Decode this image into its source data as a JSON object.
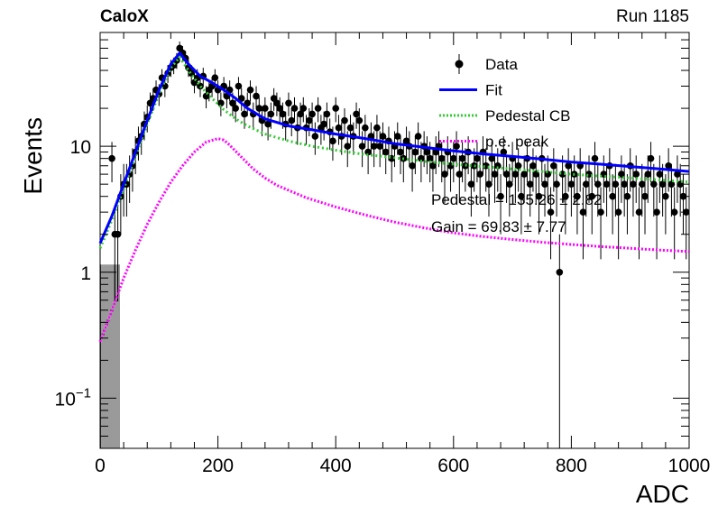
{
  "chart_data": {
    "type": "scatter",
    "top_left_label": "CaloX",
    "top_right_label": "Run 1185",
    "xlabel": "ADC",
    "ylabel": "Events",
    "xlim": [
      0,
      1000
    ],
    "ylim": [
      0.04,
      80
    ],
    "yscale": "log",
    "x_ticks": [
      0,
      200,
      400,
      600,
      800,
      1000
    ],
    "x_tick_labels": [
      "0",
      "200",
      "400",
      "600",
      "800",
      "1000"
    ],
    "y_ticks": [
      0.1,
      1,
      10
    ],
    "y_tick_labels": [
      {
        "base": "10",
        "exp": "−1"
      },
      {
        "base": "1",
        "exp": ""
      },
      {
        "base": "10",
        "exp": ""
      }
    ],
    "legend_position": "top-right",
    "legend": [
      {
        "label": "Data",
        "kind": "marker",
        "color": "#000000"
      },
      {
        "label": "Fit",
        "kind": "line",
        "color": "#0000ff"
      },
      {
        "label": "Pedestal CB",
        "kind": "dotted",
        "color": "#33cc33"
      },
      {
        "label": "p.e. peak",
        "kind": "dotted",
        "color": "#ff00ff"
      }
    ],
    "fit_results": [
      {
        "label": "Pedestal = 135.26 ± 2.82"
      },
      {
        "label": "Gain = 69.83 ± 7.77"
      }
    ],
    "series": [
      {
        "name": "Data",
        "color": "#000000",
        "x": [
          20,
          25,
          30,
          35,
          40,
          45,
          50,
          55,
          60,
          65,
          70,
          75,
          80,
          85,
          90,
          95,
          100,
          105,
          110,
          115,
          120,
          125,
          130,
          135,
          140,
          145,
          150,
          155,
          160,
          165,
          170,
          175,
          180,
          185,
          190,
          195,
          200,
          205,
          210,
          215,
          220,
          225,
          230,
          235,
          240,
          245,
          250,
          255,
          260,
          265,
          270,
          275,
          280,
          285,
          290,
          295,
          300,
          305,
          310,
          315,
          320,
          325,
          330,
          335,
          340,
          345,
          350,
          355,
          360,
          365,
          370,
          375,
          380,
          385,
          390,
          395,
          400,
          405,
          410,
          415,
          420,
          425,
          430,
          435,
          440,
          445,
          450,
          455,
          460,
          465,
          470,
          475,
          480,
          485,
          490,
          495,
          500,
          505,
          510,
          515,
          520,
          525,
          530,
          535,
          540,
          545,
          550,
          555,
          560,
          565,
          570,
          575,
          580,
          585,
          590,
          595,
          600,
          605,
          610,
          615,
          620,
          625,
          630,
          635,
          640,
          645,
          650,
          655,
          660,
          665,
          670,
          675,
          680,
          685,
          690,
          695,
          700,
          705,
          710,
          715,
          720,
          725,
          730,
          735,
          740,
          745,
          750,
          755,
          760,
          765,
          770,
          775,
          780,
          785,
          790,
          795,
          800,
          805,
          810,
          815,
          820,
          825,
          830,
          835,
          840,
          845,
          850,
          855,
          860,
          865,
          870,
          875,
          880,
          885,
          890,
          895,
          900,
          905,
          910,
          915,
          920,
          925,
          930,
          935,
          940,
          945,
          950,
          955,
          960,
          965,
          970,
          975,
          980,
          985,
          990,
          995
        ],
        "y": [
          8,
          2,
          2,
          4,
          5,
          5,
          6,
          7,
          9,
          11,
          12,
          15,
          17,
          22,
          24,
          28,
          26,
          35,
          30,
          38,
          42,
          44,
          48,
          60,
          55,
          50,
          42,
          38,
          32,
          35,
          30,
          36,
          25,
          28,
          30,
          35,
          28,
          22,
          30,
          25,
          28,
          22,
          20,
          30,
          24,
          18,
          22,
          28,
          18,
          25,
          20,
          16,
          20,
          15,
          18,
          24,
          22,
          20,
          18,
          15,
          22,
          16,
          20,
          14,
          18,
          20,
          14,
          16,
          18,
          12,
          20,
          14,
          15,
          18,
          13,
          11,
          20,
          14,
          12,
          16,
          10,
          14,
          12,
          18,
          16,
          10,
          14,
          9,
          12,
          10,
          14,
          10,
          12,
          9,
          11,
          8,
          10,
          12,
          9,
          8,
          11,
          10,
          7,
          9,
          12,
          8,
          10,
          9,
          8,
          7,
          9,
          10,
          8,
          6,
          9,
          7,
          8,
          10,
          6,
          8,
          7,
          9,
          5,
          7,
          8,
          6,
          9,
          7,
          5,
          8,
          6,
          7,
          4,
          9,
          6,
          5,
          8,
          6,
          7,
          4,
          6,
          8,
          5,
          7,
          6,
          4,
          8,
          5,
          6,
          3,
          7,
          5,
          1,
          6,
          4,
          7,
          5,
          6,
          4,
          7,
          3,
          5,
          6,
          4,
          8,
          5,
          3,
          6,
          5,
          7,
          4,
          5,
          3,
          6,
          5,
          4,
          7,
          5,
          6,
          3,
          5,
          4,
          6,
          8,
          5,
          3,
          6,
          5,
          4,
          7,
          5,
          3,
          6,
          5,
          4,
          3
        ]
      },
      {
        "name": "Fit",
        "color": "#0000ff",
        "x": [
          0,
          20,
          40,
          60,
          80,
          100,
          120,
          135,
          150,
          170,
          190,
          210,
          230,
          250,
          280,
          320,
          360,
          400,
          450,
          500,
          550,
          600,
          650,
          700,
          750,
          800,
          850,
          900,
          950,
          1000
        ],
        "y": [
          1.7,
          2.8,
          5.0,
          9.0,
          16,
          28,
          45,
          55,
          45,
          36,
          32,
          28,
          24,
          20,
          16.5,
          14.5,
          13.5,
          12.5,
          11.5,
          10.5,
          9.8,
          9.2,
          8.7,
          8.3,
          7.9,
          7.5,
          7.2,
          6.9,
          6.6,
          6.3
        ]
      },
      {
        "name": "Pedestal CB",
        "color": "#33cc33",
        "x": [
          0,
          20,
          40,
          60,
          80,
          100,
          120,
          135,
          150,
          170,
          190,
          210,
          230,
          250,
          280,
          320,
          360,
          400,
          450,
          500,
          550,
          600,
          650,
          700,
          750,
          800,
          850,
          900,
          950,
          1000
        ],
        "y": [
          1.55,
          2.6,
          4.6,
          8.3,
          15,
          26,
          42,
          51,
          40,
          30,
          24,
          19.5,
          16.5,
          14.5,
          12.5,
          11,
          10,
          9.3,
          8.6,
          8.1,
          7.6,
          7.2,
          6.9,
          6.6,
          6.3,
          6.0,
          5.8,
          5.6,
          5.4,
          5.2
        ]
      },
      {
        "name": "p.e. peak",
        "color": "#ff00ff",
        "x": [
          0,
          20,
          40,
          60,
          80,
          100,
          120,
          140,
          160,
          180,
          200,
          210,
          220,
          240,
          260,
          280,
          300,
          350,
          400,
          450,
          500,
          550,
          600,
          650,
          700,
          750,
          800,
          850,
          900,
          950,
          1000
        ],
        "y": [
          0.28,
          0.5,
          0.9,
          1.5,
          2.4,
          3.6,
          5.2,
          7.0,
          9.0,
          10.8,
          11.5,
          11.2,
          10.2,
          8.2,
          6.6,
          5.6,
          4.9,
          3.9,
          3.3,
          2.85,
          2.5,
          2.25,
          2.05,
          1.92,
          1.82,
          1.73,
          1.66,
          1.6,
          1.55,
          1.5,
          1.46
        ]
      }
    ]
  }
}
